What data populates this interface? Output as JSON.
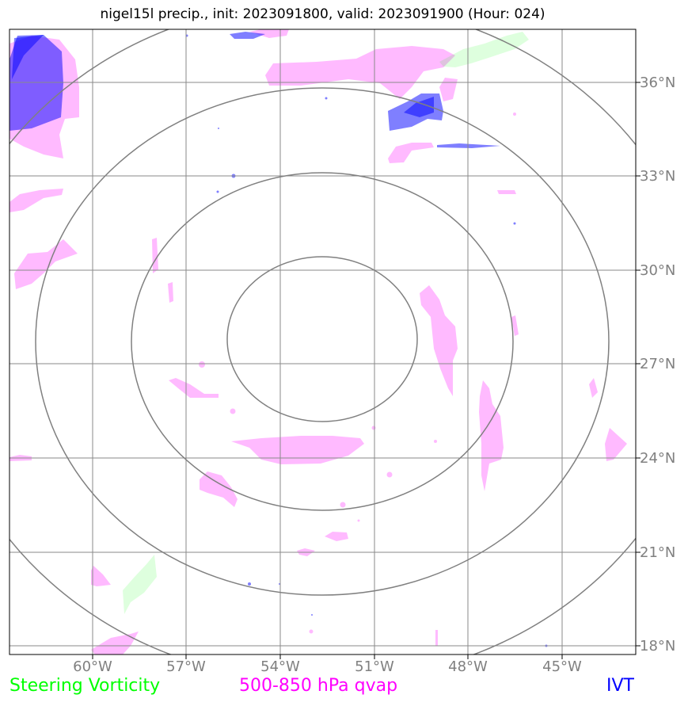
{
  "title": "nigel15l precip., init: 2023091800, valid: 2023091900 (Hour: 024)",
  "map": {
    "lon_ticks": [
      "60°W",
      "57°W",
      "54°W",
      "51°W",
      "48°W",
      "45°W"
    ],
    "lat_ticks": [
      "36°N",
      "33°N",
      "30°N",
      "27°N",
      "24°N",
      "21°N",
      "18°N"
    ],
    "range_rings": 3
  },
  "legend": {
    "vorticity": "Steering Vorticity",
    "qvap": "500-850 hPa qvap",
    "ivt": "IVT"
  },
  "colors": {
    "vorticity": "#00ff00",
    "qvap": "#ff00ff",
    "ivt": "#0000ff",
    "grid": "#888888",
    "rings": "#808080"
  }
}
